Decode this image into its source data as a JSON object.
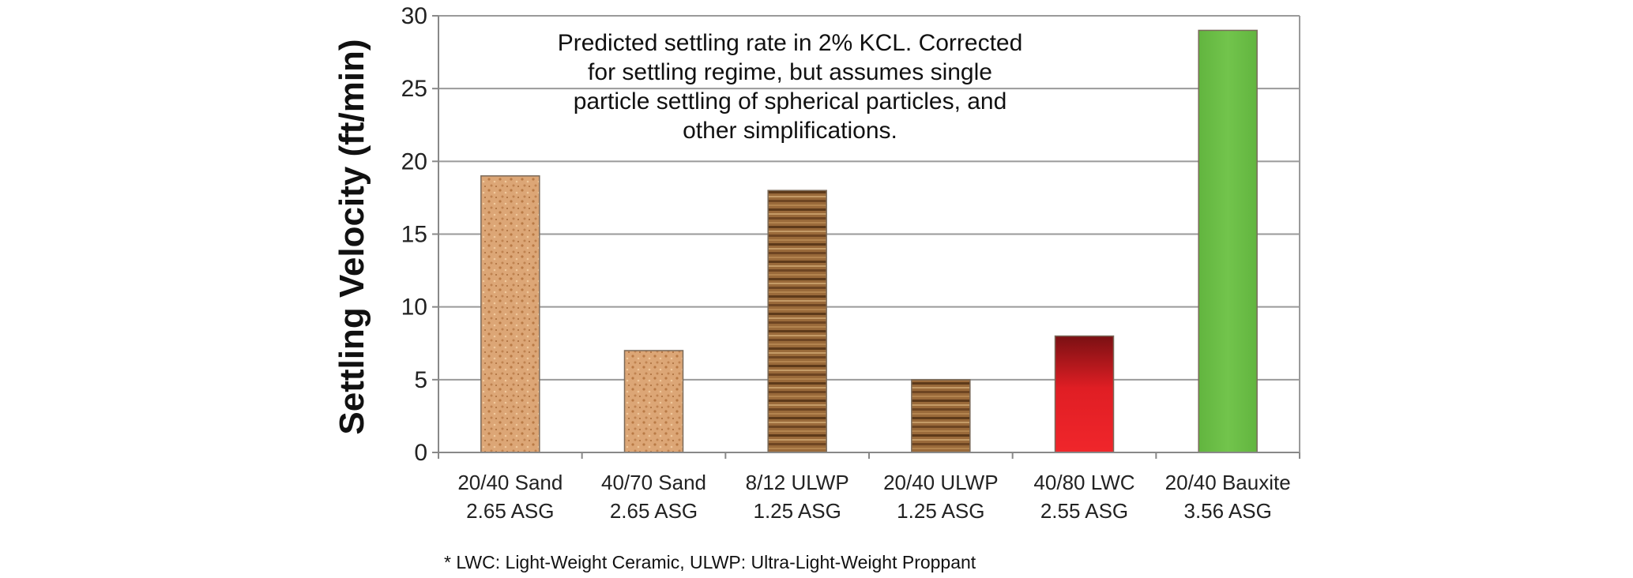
{
  "chart_data": {
    "type": "bar",
    "title": "",
    "ylabel": "Settling Velocity (ft/min)",
    "xlabel": "",
    "ylim": [
      0,
      30
    ],
    "yticks": [
      0,
      5,
      10,
      15,
      20,
      25,
      30
    ],
    "grid": true,
    "categories": [
      {
        "line1": "20/40 Sand",
        "line2": "2.65 ASG"
      },
      {
        "line1": "40/70 Sand",
        "line2": "2.65 ASG"
      },
      {
        "line1": "8/12 ULWP",
        "line2": "1.25 ASG"
      },
      {
        "line1": "20/40 ULWP",
        "line2": "1.25 ASG"
      },
      {
        "line1": "40/80 LWC",
        "line2": "2.55 ASG"
      },
      {
        "line1": "20/40 Bauxite",
        "line2": "3.56 ASG"
      }
    ],
    "values": [
      19,
      7,
      18,
      5,
      8,
      29
    ],
    "bar_fills": [
      "sand",
      "sand",
      "wood",
      "wood",
      "red",
      "green"
    ],
    "colors": {
      "sand": "#d9a06e",
      "wood": "#8a5a2f",
      "red": "#e01e24",
      "green": "#6bbf47",
      "grid": "#9a9a9a",
      "axis": "#888888"
    },
    "annotation": [
      "Predicted settling rate in 2% KCL. Corrected",
      "for settling regime, but assumes single",
      "particle settling of spherical particles, and",
      "other simplifications."
    ],
    "footnote": "* LWC: Light-Weight Ceramic, ULWP: Ultra-Light-Weight Proppant"
  }
}
